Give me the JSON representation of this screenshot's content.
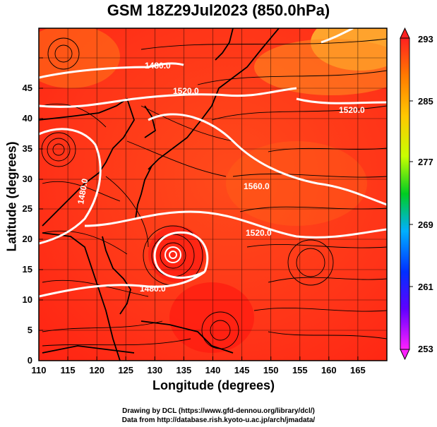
{
  "title": "GSM 18Z29Jul2023 (850.0hPa)",
  "axes": {
    "xlabel": "Longitude (degrees)",
    "ylabel": "Latitude  (degrees)",
    "x_ticks": [
      "110",
      "115",
      "120",
      "125",
      "130",
      "135",
      "140",
      "145",
      "150",
      "155",
      "160",
      "165"
    ],
    "y_ticks": [
      "0",
      "5",
      "10",
      "15",
      "20",
      "25",
      "30",
      "35",
      "40",
      "45"
    ]
  },
  "colorbar": {
    "ticks": [
      "293",
      "285",
      "277",
      "269",
      "261",
      "253"
    ],
    "colors": [
      "#ff2020",
      "#ff9a00",
      "#ffff00",
      "#00cc00",
      "#00a0ff",
      "#0000ff",
      "#a000ff",
      "#ff00ff"
    ]
  },
  "contour_labels": [
    "1480.0",
    "1520.0",
    "1520.0",
    "1560.0",
    "1520.0",
    "1480.0",
    "1480.0"
  ],
  "credits": {
    "line1": "Drawing by DCL (https://www.gfd-dennou.org/library/dcl/)",
    "line2": "Data from http://database.rish.kyoto-u.ac.jp/arch/jmadata/"
  },
  "map_colors": {
    "warm": "#ff3a1c",
    "hot": "#ff1f10",
    "cool": "#ffa020",
    "contour": "#ffffff",
    "coast": "#000000"
  }
}
